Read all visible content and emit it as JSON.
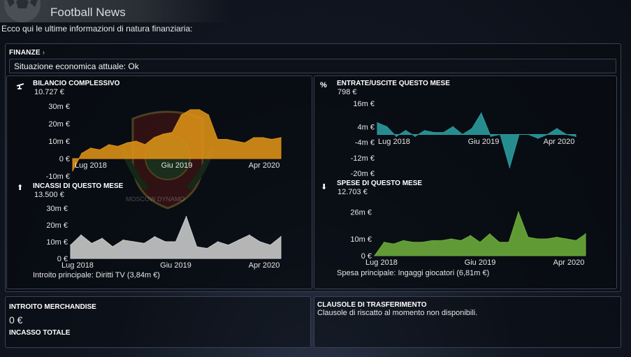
{
  "header": {
    "title": "Football News"
  },
  "intro": "Ecco qui le ultime informazioni di natura finanziaria:",
  "finanze": {
    "label": "FINANZE",
    "status": "Situazione economica attuale: Ok"
  },
  "crest_text": "MOSCOW DYNAMO",
  "bilancio": {
    "title": "BILANCIO COMPLESSIVO",
    "value": "10.727 €",
    "chart_data": {
      "type": "area",
      "title": "BILANCIO COMPLESSIVO",
      "x_tick_labels": [
        "Lug 2018",
        "Giu 2019",
        "Apr 2020"
      ],
      "y_tick_labels": [
        "30m €",
        "20m €",
        "10m €",
        "0 €",
        "-10m €"
      ],
      "y_ticks": [
        30,
        20,
        10,
        0,
        -10
      ],
      "ylim": [
        -10,
        30
      ],
      "color": "#d98f17",
      "values": [
        -7,
        3,
        6,
        5,
        8,
        7,
        9,
        10,
        8,
        12,
        14,
        15,
        25,
        28,
        28,
        25,
        11,
        11,
        10,
        9,
        12,
        12,
        11,
        12
      ]
    }
  },
  "entrate_uscite": {
    "title": "ENTRATE/USCITE QUESTO MESE",
    "value": "798 €",
    "chart_data": {
      "type": "area",
      "title": "ENTRATE/USCITE QUESTO MESE",
      "x_tick_labels": [
        "Lug 2018",
        "Giu 2019",
        "Apr 2020"
      ],
      "y_tick_labels": [
        "16m €",
        "4m €",
        "-4m €",
        "-12m €",
        "-20m €"
      ],
      "y_ticks": [
        16,
        4,
        -4,
        -12,
        -20
      ],
      "ylim": [
        -20,
        16
      ],
      "color": "#2a9a9c",
      "values": [
        6,
        4,
        -1,
        2,
        -1,
        2,
        1,
        1,
        4,
        0,
        3,
        11,
        -1,
        0,
        -17,
        0,
        0,
        -2,
        0,
        3,
        0,
        -1
      ]
    }
  },
  "incassi": {
    "title": "INCASSI DI QUESTO MESE",
    "value": "13.500 €",
    "chart_data": {
      "type": "area",
      "title": "INCASSI DI QUESTO MESE",
      "x_tick_labels": [
        "Lug 2018",
        "Giu 2019",
        "Apr 2020"
      ],
      "y_tick_labels": [
        "30m €",
        "20m €",
        "10m €",
        "0 €"
      ],
      "y_ticks": [
        30,
        20,
        10,
        0
      ],
      "ylim": [
        0,
        30
      ],
      "color": "#c8c8c8",
      "values": [
        8,
        14,
        9,
        12,
        7,
        11,
        10,
        9,
        13,
        10,
        10,
        25,
        7,
        6,
        10,
        8,
        11,
        14,
        10,
        8,
        13
      ]
    },
    "note": "Introito principale: Diritti TV (3,84m €)"
  },
  "spese": {
    "title": "SPESE DI QUESTO MESE",
    "value": "12.703 €",
    "chart_data": {
      "type": "area",
      "title": "SPESE DI QUESTO MESE",
      "x_tick_labels": [
        "Lug 2018",
        "Giu 2019",
        "Apr 2020"
      ],
      "y_tick_labels": [
        "26m €",
        "10m €",
        "0 €"
      ],
      "y_ticks": [
        26,
        10,
        0
      ],
      "ylim": [
        0,
        30
      ],
      "color": "#6aaa3a",
      "values": [
        0,
        8,
        7,
        9,
        8,
        8,
        9,
        9,
        10,
        9,
        12,
        8,
        13,
        8,
        8,
        26,
        11,
        10,
        10,
        11,
        10,
        9,
        13
      ]
    },
    "note": "Spesa principale: Ingaggi giocatori (6,81m €)"
  },
  "merchandise": {
    "title": "INTROITO MERCHANDISE",
    "value": "0 €",
    "sub_title": "INCASSO TOTALE"
  },
  "clausole": {
    "title": "CLAUSOLE DI TRASFERIMENTO",
    "text": "Clausole di riscatto al momento non disponibili."
  }
}
